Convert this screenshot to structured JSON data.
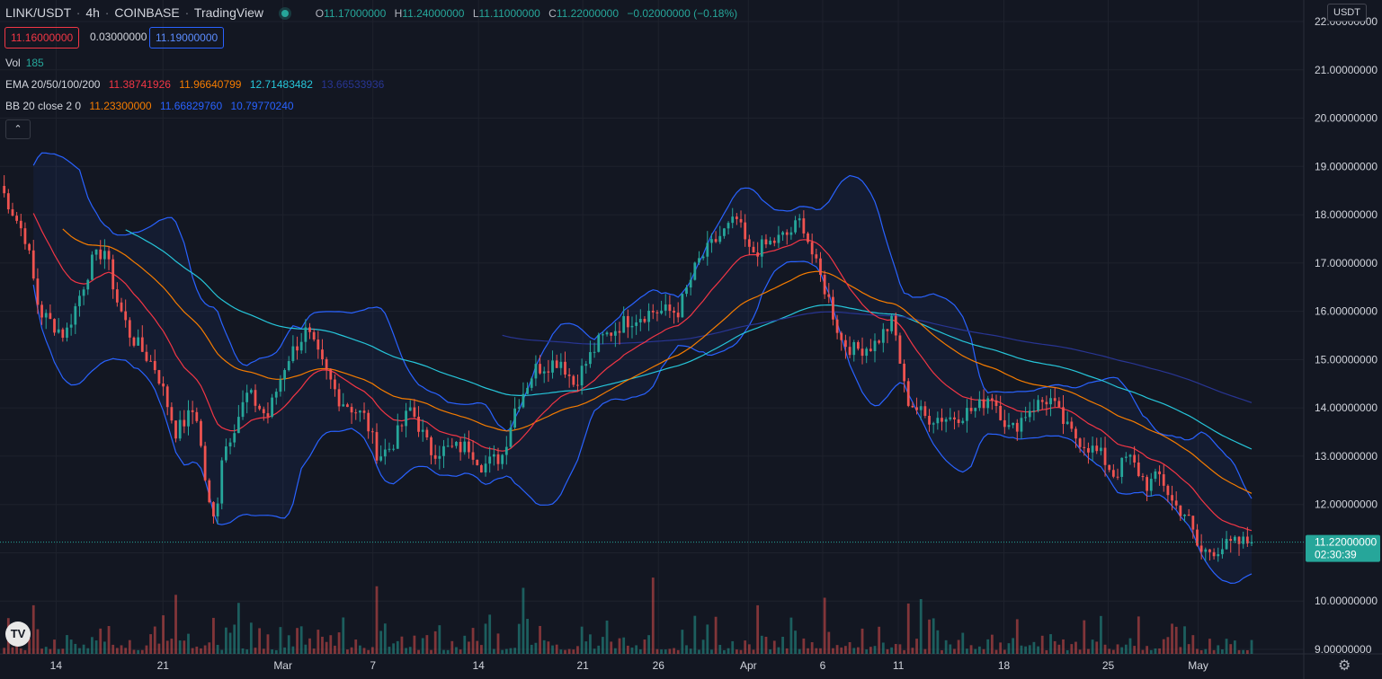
{
  "header": {
    "symbol": "LINK/USDT",
    "interval": "4h",
    "exchange": "COINBASE",
    "source": "TradingView",
    "ohlc": {
      "o_label": "O",
      "o": "11.17000000",
      "h_label": "H",
      "h": "11.24000000",
      "l_label": "L",
      "l": "11.11000000",
      "c_label": "C",
      "c": "11.22000000",
      "change": "−0.02000000 (−0.18%)"
    }
  },
  "quote": {
    "bid": "11.16000000",
    "spread": "0.03000000",
    "ask": "11.19000000"
  },
  "legend": {
    "vol": {
      "label": "Vol",
      "value": "185"
    },
    "ema": {
      "label": "EMA 20/50/100/200",
      "v20": "11.38741926",
      "v50": "11.96640799",
      "v100": "12.71483482",
      "v200": "13.66533936"
    },
    "bb": {
      "label": "BB 20 close 2 0",
      "basis": "11.23300000",
      "upper": "11.66829760",
      "lower": "10.79770240"
    }
  },
  "currency_button": "USDT",
  "collapse_label": "⌃",
  "logo_text": "TV",
  "colors": {
    "bg": "#131722",
    "grid": "#1e222d",
    "up": "#26a69a",
    "down": "#ef5350",
    "ema20": "#f23645",
    "ema50": "#f57c00",
    "ema100": "#26c6da",
    "ema200": "#283593",
    "bb_line": "#2962ff",
    "bb_fill": "rgba(41,98,255,0.07)",
    "price_label": "#26a69a"
  },
  "chart_data": {
    "type": "candlestick",
    "y_range": [
      9,
      22
    ],
    "y_ticks": [
      "22.00000000",
      "21.00000000",
      "20.00000000",
      "19.00000000",
      "18.00000000",
      "17.00000000",
      "16.00000000",
      "15.00000000",
      "14.00000000",
      "13.00000000",
      "12.00000000",
      "11.00000000",
      "10.00000000",
      "9.00000000"
    ],
    "x_ticks": [
      {
        "label": "14",
        "pos": 0.043
      },
      {
        "label": "21",
        "pos": 0.125
      },
      {
        "label": "Mar",
        "pos": 0.217
      },
      {
        "label": "7",
        "pos": 0.286
      },
      {
        "label": "14",
        "pos": 0.367
      },
      {
        "label": "21",
        "pos": 0.447
      },
      {
        "label": "26",
        "pos": 0.505
      },
      {
        "label": "Apr",
        "pos": 0.574
      },
      {
        "label": "6",
        "pos": 0.631
      },
      {
        "label": "11",
        "pos": 0.689
      },
      {
        "label": "18",
        "pos": 0.77
      },
      {
        "label": "25",
        "pos": 0.85
      },
      {
        "label": "May",
        "pos": 0.919
      }
    ],
    "last_price": "11.22000000",
    "countdown": "02:30:39",
    "close_path": [
      [
        0,
        18.6
      ],
      [
        0.02,
        17.5
      ],
      [
        0.03,
        16.0
      ],
      [
        0.05,
        15.5
      ],
      [
        0.07,
        17.0
      ],
      [
        0.08,
        17.3
      ],
      [
        0.09,
        16.2
      ],
      [
        0.1,
        15.5
      ],
      [
        0.12,
        14.8
      ],
      [
        0.135,
        13.5
      ],
      [
        0.15,
        14.0
      ],
      [
        0.16,
        12.0
      ],
      [
        0.165,
        11.6
      ],
      [
        0.17,
        13.0
      ],
      [
        0.19,
        14.3
      ],
      [
        0.205,
        13.8
      ],
      [
        0.22,
        15.0
      ],
      [
        0.235,
        15.6
      ],
      [
        0.245,
        15.0
      ],
      [
        0.26,
        14.2
      ],
      [
        0.28,
        13.8
      ],
      [
        0.29,
        13.0
      ],
      [
        0.3,
        13.2
      ],
      [
        0.315,
        14.0
      ],
      [
        0.33,
        13.1
      ],
      [
        0.36,
        13.2
      ],
      [
        0.37,
        12.8
      ],
      [
        0.385,
        13.0
      ],
      [
        0.395,
        14.0
      ],
      [
        0.41,
        14.8
      ],
      [
        0.43,
        15.0
      ],
      [
        0.44,
        14.5
      ],
      [
        0.46,
        15.4
      ],
      [
        0.48,
        15.8
      ],
      [
        0.5,
        16.0
      ],
      [
        0.52,
        16.0
      ],
      [
        0.535,
        17.0
      ],
      [
        0.55,
        17.5
      ],
      [
        0.565,
        17.9
      ],
      [
        0.575,
        17.2
      ],
      [
        0.59,
        17.4
      ],
      [
        0.605,
        17.6
      ],
      [
        0.615,
        17.9
      ],
      [
        0.625,
        17.0
      ],
      [
        0.635,
        16.3
      ],
      [
        0.645,
        15.4
      ],
      [
        0.655,
        15.2
      ],
      [
        0.67,
        15.3
      ],
      [
        0.685,
        15.8
      ],
      [
        0.695,
        14.2
      ],
      [
        0.71,
        13.8
      ],
      [
        0.73,
        13.8
      ],
      [
        0.75,
        14.0
      ],
      [
        0.76,
        14.3
      ],
      [
        0.775,
        13.5
      ],
      [
        0.79,
        14.0
      ],
      [
        0.805,
        14.2
      ],
      [
        0.82,
        13.5
      ],
      [
        0.835,
        13.2
      ],
      [
        0.845,
        13.0
      ],
      [
        0.855,
        12.6
      ],
      [
        0.865,
        13.0
      ],
      [
        0.88,
        12.4
      ],
      [
        0.89,
        12.6
      ],
      [
        0.9,
        12.0
      ],
      [
        0.91,
        11.8
      ],
      [
        0.92,
        11.0
      ],
      [
        0.935,
        11.1
      ],
      [
        0.95,
        11.2
      ],
      [
        0.96,
        11.22
      ]
    ]
  }
}
